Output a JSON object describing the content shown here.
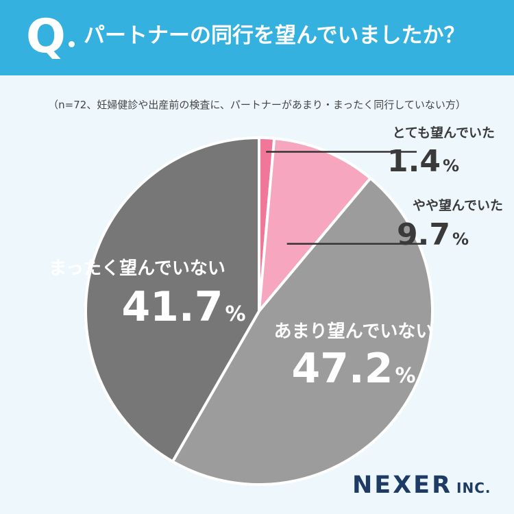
{
  "header": {
    "q_letter": "Q",
    "title": "パートナーの同行を望んでいましたか？"
  },
  "note": "（n=72、妊婦健診や出産前の検査に、パートナーがあまり・まったく同行していない方）",
  "logo": {
    "name": "NEXER",
    "suffix": "INC."
  },
  "chart_data": {
    "type": "pie",
    "unit": "%",
    "slices": [
      {
        "label": "とても望んでいた",
        "value": 1.4,
        "color": "#f07799"
      },
      {
        "label": "やや望んでいた",
        "value": 9.7,
        "color": "#f6a6bf"
      },
      {
        "label": "あまり望んでいない",
        "value": 47.2,
        "color": "#9c9c9c"
      },
      {
        "label": "まったく望んでいない",
        "value": 41.7,
        "color": "#777777"
      }
    ]
  }
}
